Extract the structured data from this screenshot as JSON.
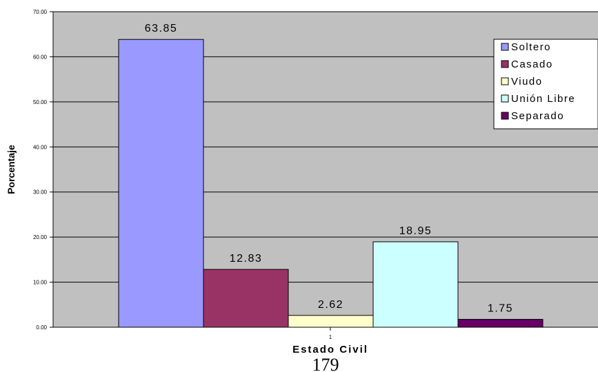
{
  "chart_data": {
    "type": "bar",
    "categories": [
      "1"
    ],
    "series": [
      {
        "name": "Soltero",
        "values": [
          63.85
        ],
        "color": "#9999ff"
      },
      {
        "name": "Casado",
        "values": [
          12.83
        ],
        "color": "#993366"
      },
      {
        "name": "Viudo",
        "values": [
          2.62
        ],
        "color": "#ffffcc"
      },
      {
        "name": "Unión Libre",
        "values": [
          18.95
        ],
        "color": "#ccffff"
      },
      {
        "name": "Separado",
        "values": [
          1.75
        ],
        "color": "#660066"
      }
    ],
    "data_labels": [
      "63.85",
      "12.83",
      "2.62",
      "18.95",
      "1.75"
    ],
    "xlabel": "Estado Civil",
    "ylabel": "Porcentaje",
    "ylim": [
      0,
      70
    ],
    "yticks": [
      "0.00",
      "10.00",
      "20.00",
      "30.00",
      "40.00",
      "50.00",
      "60.00",
      "70.00"
    ],
    "grid": true,
    "plot_background": "#c0c0c0",
    "legend_position": "right"
  },
  "page_number": "179"
}
